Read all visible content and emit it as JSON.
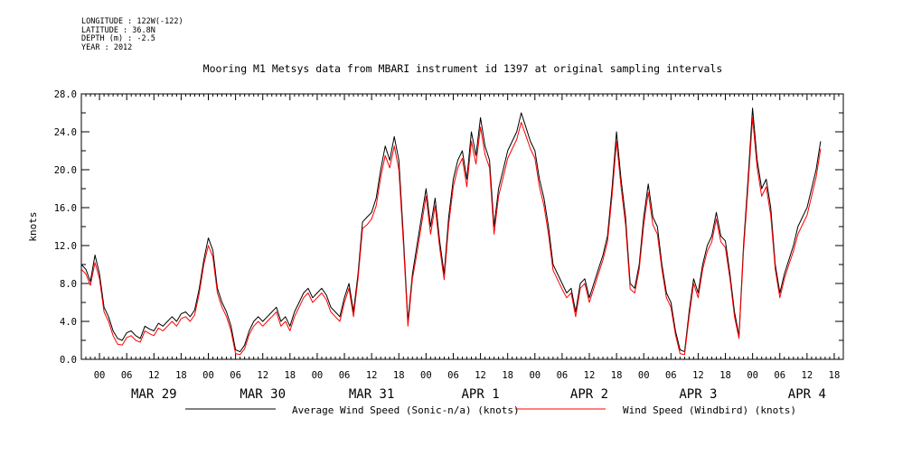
{
  "header": {
    "longitude": "LONGITUDE : 122W(-122)",
    "latitude": "LATITUDE : 36.8N",
    "depth": "DEPTH (m) : -2.5",
    "year": "YEAR : 2012"
  },
  "chart_data": {
    "type": "line",
    "title": "Mooring M1 Metsys data from MBARI instrument id 1397 at original sampling intervals",
    "ylabel": "knots",
    "xlabel": "",
    "ylim": [
      0,
      28
    ],
    "y_ticks": [
      "0.0",
      "4.0",
      "8.0",
      "12.0",
      "16.0",
      "20.0",
      "24.0",
      "28.0"
    ],
    "x_range_hours": [
      -4,
      164
    ],
    "hour_tick_labels": [
      "00",
      "06",
      "12",
      "18"
    ],
    "day_labels": [
      "MAR 29",
      "MAR 30",
      "MAR 31",
      "APR  1",
      "APR  2",
      "APR  3",
      "APR  4"
    ],
    "grid": false,
    "legend_position": "bottom",
    "colors": {
      "series1": "#000000",
      "series2": "#ff0000"
    },
    "series": [
      {
        "name": "Average Wind Speed (Sonic-n/a) (knots)",
        "points": [
          [
            -4,
            10
          ],
          [
            -3,
            9.5
          ],
          [
            -2,
            8.2
          ],
          [
            -1,
            11
          ],
          [
            0,
            9
          ],
          [
            1,
            5.5
          ],
          [
            2,
            4.5
          ],
          [
            3,
            3
          ],
          [
            4,
            2.2
          ],
          [
            5,
            2
          ],
          [
            6,
            2.8
          ],
          [
            7,
            3
          ],
          [
            8,
            2.5
          ],
          [
            9,
            2.2
          ],
          [
            10,
            3.5
          ],
          [
            11,
            3.2
          ],
          [
            12,
            3
          ],
          [
            13,
            3.8
          ],
          [
            14,
            3.5
          ],
          [
            15,
            4
          ],
          [
            16,
            4.5
          ],
          [
            17,
            4
          ],
          [
            18,
            4.8
          ],
          [
            19,
            5
          ],
          [
            20,
            4.5
          ],
          [
            21,
            5.2
          ],
          [
            22,
            7.5
          ],
          [
            23,
            10.5
          ],
          [
            24,
            12.8
          ],
          [
            25,
            11.5
          ],
          [
            26,
            7.5
          ],
          [
            27,
            6
          ],
          [
            28,
            5
          ],
          [
            29,
            3.5
          ],
          [
            30,
            1
          ],
          [
            31,
            0.8
          ],
          [
            32,
            1.5
          ],
          [
            33,
            3
          ],
          [
            34,
            4
          ],
          [
            35,
            4.5
          ],
          [
            36,
            4
          ],
          [
            37,
            4.5
          ],
          [
            38,
            5
          ],
          [
            39,
            5.5
          ],
          [
            40,
            4
          ],
          [
            41,
            4.5
          ],
          [
            42,
            3.5
          ],
          [
            43,
            5
          ],
          [
            44,
            6
          ],
          [
            45,
            7
          ],
          [
            46,
            7.5
          ],
          [
            47,
            6.5
          ],
          [
            48,
            7
          ],
          [
            49,
            7.5
          ],
          [
            50,
            6.8
          ],
          [
            51,
            5.5
          ],
          [
            52,
            5
          ],
          [
            53,
            4.5
          ],
          [
            54,
            6.5
          ],
          [
            55,
            8
          ],
          [
            56,
            5
          ],
          [
            57,
            9
          ],
          [
            58,
            14.5
          ],
          [
            59,
            15
          ],
          [
            60,
            15.5
          ],
          [
            61,
            17
          ],
          [
            62,
            20
          ],
          [
            63,
            22.5
          ],
          [
            64,
            21
          ],
          [
            65,
            23.5
          ],
          [
            66,
            21
          ],
          [
            67,
            13
          ],
          [
            68,
            4
          ],
          [
            69,
            9
          ],
          [
            70,
            12
          ],
          [
            71,
            15
          ],
          [
            72,
            18
          ],
          [
            73,
            14
          ],
          [
            74,
            17
          ],
          [
            75,
            12.5
          ],
          [
            76,
            9
          ],
          [
            77,
            15
          ],
          [
            78,
            19
          ],
          [
            79,
            21
          ],
          [
            80,
            22
          ],
          [
            81,
            19
          ],
          [
            82,
            24
          ],
          [
            83,
            21.5
          ],
          [
            84,
            25.5
          ],
          [
            85,
            22.5
          ],
          [
            86,
            21
          ],
          [
            87,
            14
          ],
          [
            88,
            18
          ],
          [
            89,
            20
          ],
          [
            90,
            22
          ],
          [
            91,
            23
          ],
          [
            92,
            24
          ],
          [
            93,
            26
          ],
          [
            94,
            24.5
          ],
          [
            95,
            23
          ],
          [
            96,
            22
          ],
          [
            97,
            19
          ],
          [
            98,
            17
          ],
          [
            99,
            14
          ],
          [
            100,
            10
          ],
          [
            101,
            9
          ],
          [
            102,
            8
          ],
          [
            103,
            7
          ],
          [
            104,
            7.5
          ],
          [
            105,
            5
          ],
          [
            106,
            8
          ],
          [
            107,
            8.5
          ],
          [
            108,
            6.5
          ],
          [
            109,
            8
          ],
          [
            110,
            9.5
          ],
          [
            111,
            11
          ],
          [
            112,
            13
          ],
          [
            113,
            18
          ],
          [
            114,
            24
          ],
          [
            115,
            19
          ],
          [
            116,
            15
          ],
          [
            117,
            8
          ],
          [
            118,
            7.5
          ],
          [
            119,
            10
          ],
          [
            120,
            15
          ],
          [
            121,
            18.5
          ],
          [
            122,
            15
          ],
          [
            123,
            14
          ],
          [
            124,
            10
          ],
          [
            125,
            7
          ],
          [
            126,
            6
          ],
          [
            127,
            3
          ],
          [
            128,
            1
          ],
          [
            129,
            0.8
          ],
          [
            130,
            5
          ],
          [
            131,
            8.5
          ],
          [
            132,
            7
          ],
          [
            133,
            10
          ],
          [
            134,
            12
          ],
          [
            135,
            13
          ],
          [
            136,
            15.5
          ],
          [
            137,
            13
          ],
          [
            138,
            12.5
          ],
          [
            139,
            9
          ],
          [
            140,
            5
          ],
          [
            141,
            2.5
          ],
          [
            142,
            12
          ],
          [
            143,
            19
          ],
          [
            144,
            26.5
          ],
          [
            145,
            21
          ],
          [
            146,
            18
          ],
          [
            147,
            19
          ],
          [
            148,
            16
          ],
          [
            149,
            10
          ],
          [
            150,
            7
          ],
          [
            151,
            9
          ],
          [
            152,
            10.5
          ],
          [
            153,
            12
          ],
          [
            154,
            14
          ],
          [
            155,
            15
          ],
          [
            156,
            16
          ],
          [
            157,
            18
          ],
          [
            158,
            20
          ],
          [
            159,
            23
          ]
        ]
      },
      {
        "name": "Wind Speed (Windbird) (knots)",
        "points": [
          [
            -4,
            9.5
          ],
          [
            -3,
            9
          ],
          [
            -2,
            7.8
          ],
          [
            -1,
            10.2
          ],
          [
            0,
            8.5
          ],
          [
            1,
            5
          ],
          [
            2,
            4
          ],
          [
            3,
            2.5
          ],
          [
            4,
            1.6
          ],
          [
            5,
            1.5
          ],
          [
            6,
            2.3
          ],
          [
            7,
            2.5
          ],
          [
            8,
            2
          ],
          [
            9,
            1.8
          ],
          [
            10,
            3
          ],
          [
            11,
            2.7
          ],
          [
            12,
            2.5
          ],
          [
            13,
            3.3
          ],
          [
            14,
            3
          ],
          [
            15,
            3.5
          ],
          [
            16,
            4
          ],
          [
            17,
            3.5
          ],
          [
            18,
            4.3
          ],
          [
            19,
            4.5
          ],
          [
            20,
            4
          ],
          [
            21,
            4.7
          ],
          [
            22,
            7
          ],
          [
            23,
            10
          ],
          [
            24,
            12
          ],
          [
            25,
            10.8
          ],
          [
            26,
            7
          ],
          [
            27,
            5.5
          ],
          [
            28,
            4.5
          ],
          [
            29,
            3
          ],
          [
            30,
            0.6
          ],
          [
            31,
            0.5
          ],
          [
            32,
            1.1
          ],
          [
            33,
            2.6
          ],
          [
            34,
            3.5
          ],
          [
            35,
            4
          ],
          [
            36,
            3.5
          ],
          [
            37,
            4
          ],
          [
            38,
            4.5
          ],
          [
            39,
            5
          ],
          [
            40,
            3.5
          ],
          [
            41,
            4
          ],
          [
            42,
            3
          ],
          [
            43,
            4.5
          ],
          [
            44,
            5.5
          ],
          [
            45,
            6.5
          ],
          [
            46,
            7
          ],
          [
            47,
            6
          ],
          [
            48,
            6.5
          ],
          [
            49,
            7
          ],
          [
            50,
            6.3
          ],
          [
            51,
            5
          ],
          [
            52,
            4.5
          ],
          [
            53,
            4
          ],
          [
            54,
            6
          ],
          [
            55,
            7.5
          ],
          [
            56,
            4.5
          ],
          [
            57,
            8.5
          ],
          [
            58,
            13.8
          ],
          [
            59,
            14.2
          ],
          [
            60,
            14.8
          ],
          [
            61,
            16.2
          ],
          [
            62,
            19.2
          ],
          [
            63,
            21.5
          ],
          [
            64,
            20.2
          ],
          [
            65,
            22.5
          ],
          [
            66,
            20
          ],
          [
            67,
            12.2
          ],
          [
            68,
            3.5
          ],
          [
            69,
            8.5
          ],
          [
            70,
            11.2
          ],
          [
            71,
            14.2
          ],
          [
            72,
            17.2
          ],
          [
            73,
            13.2
          ],
          [
            74,
            16.2
          ],
          [
            75,
            11.8
          ],
          [
            76,
            8.4
          ],
          [
            77,
            14.2
          ],
          [
            78,
            18.2
          ],
          [
            79,
            20.2
          ],
          [
            80,
            21.2
          ],
          [
            81,
            18.2
          ],
          [
            82,
            23
          ],
          [
            83,
            20.6
          ],
          [
            84,
            24.5
          ],
          [
            85,
            21.6
          ],
          [
            86,
            20.2
          ],
          [
            87,
            13.2
          ],
          [
            88,
            17.2
          ],
          [
            89,
            19.2
          ],
          [
            90,
            21.2
          ],
          [
            91,
            22.2
          ],
          [
            92,
            23.2
          ],
          [
            93,
            25
          ],
          [
            94,
            23.6
          ],
          [
            95,
            22.2
          ],
          [
            96,
            21.2
          ],
          [
            97,
            18.2
          ],
          [
            98,
            16.2
          ],
          [
            99,
            13.2
          ],
          [
            100,
            9.4
          ],
          [
            101,
            8.4
          ],
          [
            102,
            7.4
          ],
          [
            103,
            6.5
          ],
          [
            104,
            7
          ],
          [
            105,
            4.5
          ],
          [
            106,
            7.5
          ],
          [
            107,
            8
          ],
          [
            108,
            6
          ],
          [
            109,
            7.5
          ],
          [
            110,
            9
          ],
          [
            111,
            10.5
          ],
          [
            112,
            12.4
          ],
          [
            113,
            17.2
          ],
          [
            114,
            23
          ],
          [
            115,
            18.2
          ],
          [
            116,
            14.2
          ],
          [
            117,
            7.4
          ],
          [
            118,
            7
          ],
          [
            119,
            9.5
          ],
          [
            120,
            14.2
          ],
          [
            121,
            17.6
          ],
          [
            122,
            14.2
          ],
          [
            123,
            13.2
          ],
          [
            124,
            9.5
          ],
          [
            125,
            6.5
          ],
          [
            126,
            5.5
          ],
          [
            127,
            2.6
          ],
          [
            128,
            0.6
          ],
          [
            129,
            0.5
          ],
          [
            130,
            4.5
          ],
          [
            131,
            8
          ],
          [
            132,
            6.5
          ],
          [
            133,
            9.5
          ],
          [
            134,
            11.4
          ],
          [
            135,
            12.4
          ],
          [
            136,
            14.8
          ],
          [
            137,
            12.4
          ],
          [
            138,
            11.8
          ],
          [
            139,
            8.5
          ],
          [
            140,
            4.5
          ],
          [
            141,
            2.2
          ],
          [
            142,
            11.4
          ],
          [
            143,
            18.2
          ],
          [
            144,
            25.5
          ],
          [
            145,
            20.2
          ],
          [
            146,
            17.2
          ],
          [
            147,
            18.2
          ],
          [
            148,
            15.2
          ],
          [
            149,
            9.5
          ],
          [
            150,
            6.5
          ],
          [
            151,
            8.5
          ],
          [
            152,
            10
          ],
          [
            153,
            11.4
          ],
          [
            154,
            13.2
          ],
          [
            155,
            14.2
          ],
          [
            156,
            15.2
          ],
          [
            157,
            17.2
          ],
          [
            158,
            19.2
          ],
          [
            159,
            22.2
          ]
        ]
      }
    ]
  }
}
